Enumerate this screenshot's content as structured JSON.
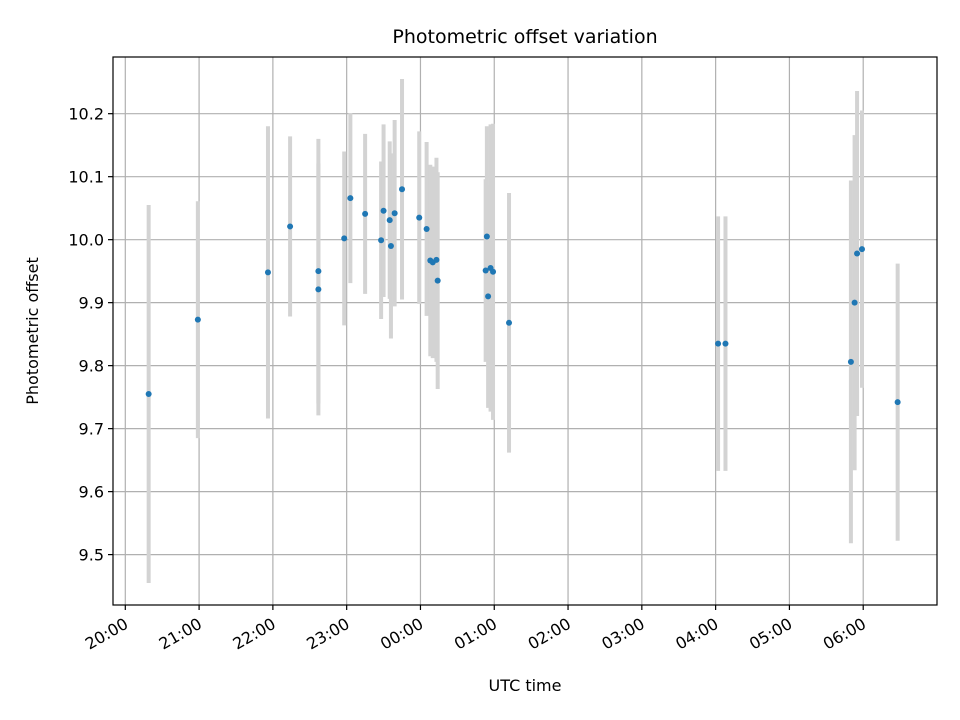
{
  "chart_data": {
    "type": "scatter",
    "title": "Photometric offset variation",
    "xlabel": "UTC time",
    "ylabel": "Photometric offset",
    "x_unit": "UTC time of night (hours, starting 20:00)",
    "x_ticks": [
      "20:00",
      "21:00",
      "22:00",
      "23:00",
      "00:00",
      "01:00",
      "02:00",
      "03:00",
      "04:00",
      "05:00",
      "06:00"
    ],
    "y_ticks": [
      "9.5",
      "9.6",
      "9.7",
      "9.8",
      "9.9",
      "10.0",
      "10.1",
      "10.2"
    ],
    "xlim": [
      "19:50",
      "07:00"
    ],
    "ylim": [
      9.42,
      10.29
    ],
    "grid": true,
    "marker_color": "#1f77b4",
    "errorbar_color": "#d3d3d3",
    "points": [
      {
        "t": "20:19",
        "y": 9.755,
        "err": 0.3
      },
      {
        "t": "20:59",
        "y": 9.873,
        "err": 0.188
      },
      {
        "t": "21:56",
        "y": 9.948,
        "err": 0.232
      },
      {
        "t": "22:14",
        "y": 10.021,
        "err": 0.143
      },
      {
        "t": "22:37",
        "y": 9.95,
        "err": 0.21
      },
      {
        "t": "22:37",
        "y": 9.921,
        "err": 0.2
      },
      {
        "t": "22:58",
        "y": 10.002,
        "err": 0.138
      },
      {
        "t": "23:03",
        "y": 10.066,
        "err": 0.135
      },
      {
        "t": "23:15",
        "y": 10.041,
        "err": 0.127
      },
      {
        "t": "23:28",
        "y": 9.999,
        "err": 0.125
      },
      {
        "t": "23:30",
        "y": 10.046,
        "err": 0.137
      },
      {
        "t": "23:35",
        "y": 10.031,
        "err": 0.125
      },
      {
        "t": "23:36",
        "y": 9.99,
        "err": 0.147
      },
      {
        "t": "23:39",
        "y": 10.042,
        "err": 0.148
      },
      {
        "t": "23:45",
        "y": 10.08,
        "err": 0.175
      },
      {
        "t": "23:59",
        "y": 10.035,
        "err": 0.137
      },
      {
        "t": "00:05",
        "y": 10.017,
        "err": 0.138
      },
      {
        "t": "00:08",
        "y": 9.967,
        "err": 0.152
      },
      {
        "t": "00:10",
        "y": 9.964,
        "err": 0.152
      },
      {
        "t": "00:13",
        "y": 9.968,
        "err": 0.162
      },
      {
        "t": "00:14",
        "y": 9.935,
        "err": 0.172
      },
      {
        "t": "00:53",
        "y": 9.951,
        "err": 0.145
      },
      {
        "t": "00:54",
        "y": 10.005,
        "err": 0.175
      },
      {
        "t": "00:55",
        "y": 9.91,
        "err": 0.177
      },
      {
        "t": "00:57",
        "y": 9.955,
        "err": 0.228
      },
      {
        "t": "00:59",
        "y": 9.949,
        "err": 0.235
      },
      {
        "t": "01:12",
        "y": 9.868,
        "err": 0.206
      },
      {
        "t": "04:02",
        "y": 9.835,
        "err": 0.202
      },
      {
        "t": "04:08",
        "y": 9.835,
        "err": 0.202
      },
      {
        "t": "05:50",
        "y": 9.806,
        "err": 0.288
      },
      {
        "t": "05:53",
        "y": 9.9,
        "err": 0.266
      },
      {
        "t": "05:55",
        "y": 9.978,
        "err": 0.258
      },
      {
        "t": "05:59",
        "y": 9.985,
        "err": 0.22
      },
      {
        "t": "06:28",
        "y": 9.742,
        "err": 0.22
      }
    ]
  }
}
